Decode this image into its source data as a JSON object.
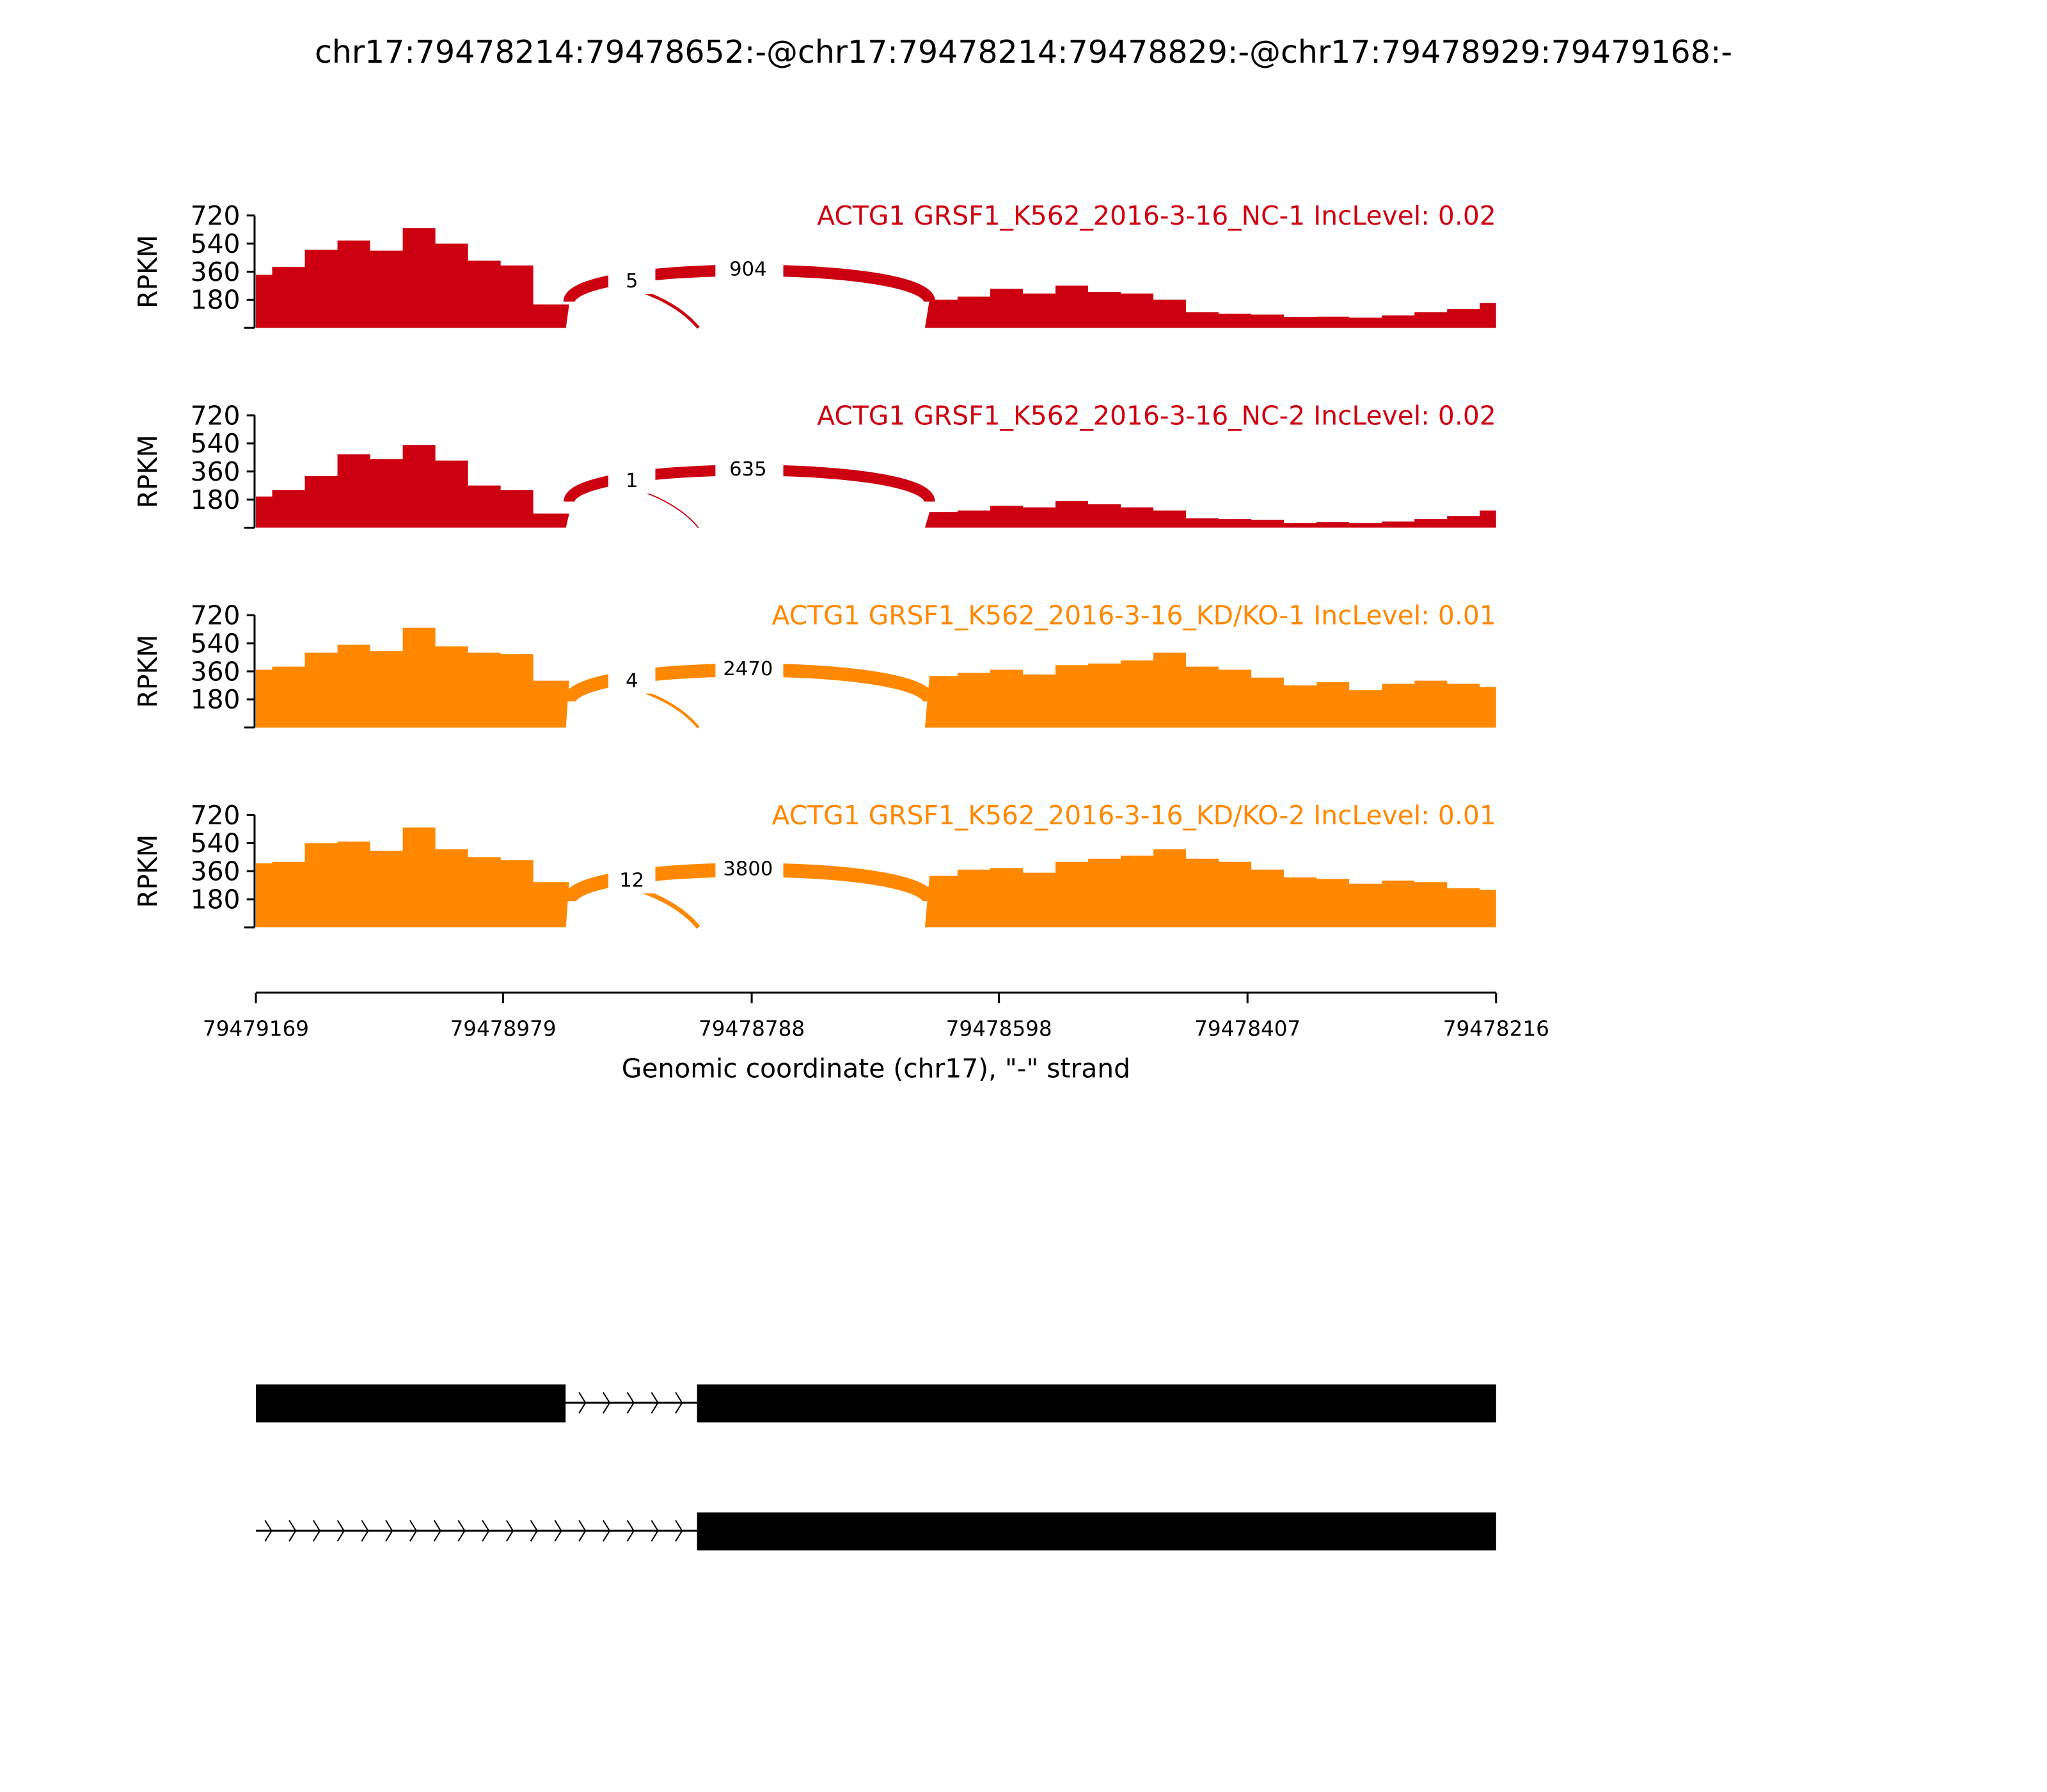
{
  "chart_data": {
    "type": "area",
    "title": "chr17:79478214:79478652:-@chr17:79478214:79478829:-@chr17:79478929:79479168:-",
    "xlabel": "Genomic coordinate (chr17), \"-\" strand",
    "ylabel": "RPKM",
    "xlim": [
      79479169,
      79478216
    ],
    "x_ticks": [
      "79479169",
      "79478979",
      "79478788",
      "79478598",
      "79478407",
      "79478216"
    ],
    "y_ticks": [
      "180",
      "360",
      "540",
      "720"
    ],
    "ylim": [
      0,
      720
    ],
    "coverage_note": "coverage sampled at 39 evenly spaced positions across xlim",
    "colors": {
      "NC": "#cc0011",
      "KD": "#ff8800",
      "gene": "#000000"
    },
    "series": [
      {
        "name": "ACTG1 GRSF1_K562_2016-3-16_NC-1 IncLevel: 0.02",
        "color": "#cc0011",
        "coverage": [
          340,
          390,
          500,
          560,
          495,
          640,
          540,
          430,
          400,
          150,
          0,
          0,
          0,
          0,
          0,
          0,
          0,
          0,
          0,
          0,
          0,
          180,
          200,
          250,
          220,
          270,
          230,
          220,
          180,
          100,
          90,
          85,
          70,
          72,
          65,
          80,
          100,
          120,
          160
        ],
        "junctions": [
          {
            "count": "904",
            "type": "skip"
          },
          {
            "count": "5",
            "type": "inclusion"
          }
        ]
      },
      {
        "name": "ACTG1 GRSF1_K562_2016-3-16_NC-2 IncLevel: 0.02",
        "color": "#cc0011",
        "coverage": [
          200,
          240,
          330,
          470,
          440,
          530,
          430,
          270,
          240,
          90,
          0,
          0,
          0,
          0,
          0,
          0,
          0,
          0,
          0,
          0,
          0,
          100,
          110,
          140,
          130,
          170,
          150,
          130,
          110,
          60,
          55,
          50,
          30,
          35,
          30,
          40,
          55,
          75,
          110
        ],
        "junctions": [
          {
            "count": "635",
            "type": "skip"
          },
          {
            "count": "1",
            "type": "inclusion"
          }
        ]
      },
      {
        "name": "ACTG1 GRSF1_K562_2016-3-16_KD/KO-1 IncLevel: 0.01",
        "color": "#ff8800",
        "coverage": [
          370,
          390,
          480,
          530,
          490,
          640,
          520,
          480,
          470,
          300,
          0,
          0,
          0,
          0,
          0,
          0,
          0,
          0,
          0,
          0,
          0,
          330,
          350,
          370,
          340,
          400,
          410,
          430,
          480,
          390,
          370,
          320,
          270,
          290,
          240,
          280,
          300,
          280,
          260
        ],
        "junctions": [
          {
            "count": "2470",
            "type": "skip"
          },
          {
            "count": "4",
            "type": "inclusion"
          }
        ]
      },
      {
        "name": "ACTG1 GRSF1_K562_2016-3-16_KD/KO-2 IncLevel: 0.01",
        "color": "#ff8800",
        "coverage": [
          410,
          420,
          540,
          550,
          490,
          640,
          500,
          450,
          430,
          290,
          0,
          0,
          0,
          0,
          0,
          0,
          0,
          0,
          0,
          0,
          0,
          330,
          370,
          380,
          350,
          420,
          440,
          460,
          500,
          440,
          420,
          370,
          320,
          310,
          280,
          300,
          290,
          250,
          240
        ],
        "junctions": [
          {
            "count": "3800",
            "type": "skip"
          },
          {
            "count": "12",
            "type": "inclusion"
          }
        ]
      }
    ],
    "transcripts": [
      {
        "exons": [
          [
            79479169,
            79478931
          ],
          [
            79478830,
            79478216
          ]
        ]
      },
      {
        "exons": [
          [
            79478830,
            79478216
          ]
        ]
      }
    ]
  }
}
